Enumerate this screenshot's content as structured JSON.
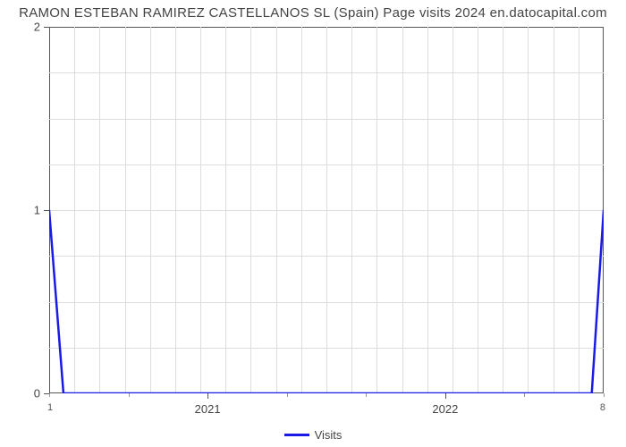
{
  "chart": {
    "type": "line",
    "title": "RAMON ESTEBAN RAMIREZ CASTELLANOS SL (Spain) Page visits 2024 en.datocapital.com",
    "title_fontsize": 15,
    "title_color": "#444444",
    "background_color": "#ffffff",
    "frame_color": "#555555",
    "grid_color": "#dddddd",
    "y": {
      "min": 0,
      "max": 2,
      "major_ticks": [
        0,
        1,
        2
      ],
      "major_labels": [
        "0",
        "1",
        "2"
      ],
      "minor_step": 0.25
    },
    "x": {
      "min": 1,
      "max": 8,
      "major_ticks": [
        3,
        6
      ],
      "major_labels": [
        "2021",
        "2022"
      ],
      "minor_ticks": [
        1,
        2,
        4,
        5,
        7,
        8
      ],
      "corner_left": "1",
      "corner_right": "8"
    },
    "series": {
      "name": "Visits",
      "color": "#1a1ae6",
      "line_width": 2.5,
      "points_x": [
        1.0,
        1.18,
        7.85,
        8.0
      ],
      "points_y": [
        1.0,
        0.0,
        0.0,
        1.0
      ]
    },
    "legend": {
      "label": "Visits",
      "swatch_color": "#1a1ae6"
    }
  }
}
